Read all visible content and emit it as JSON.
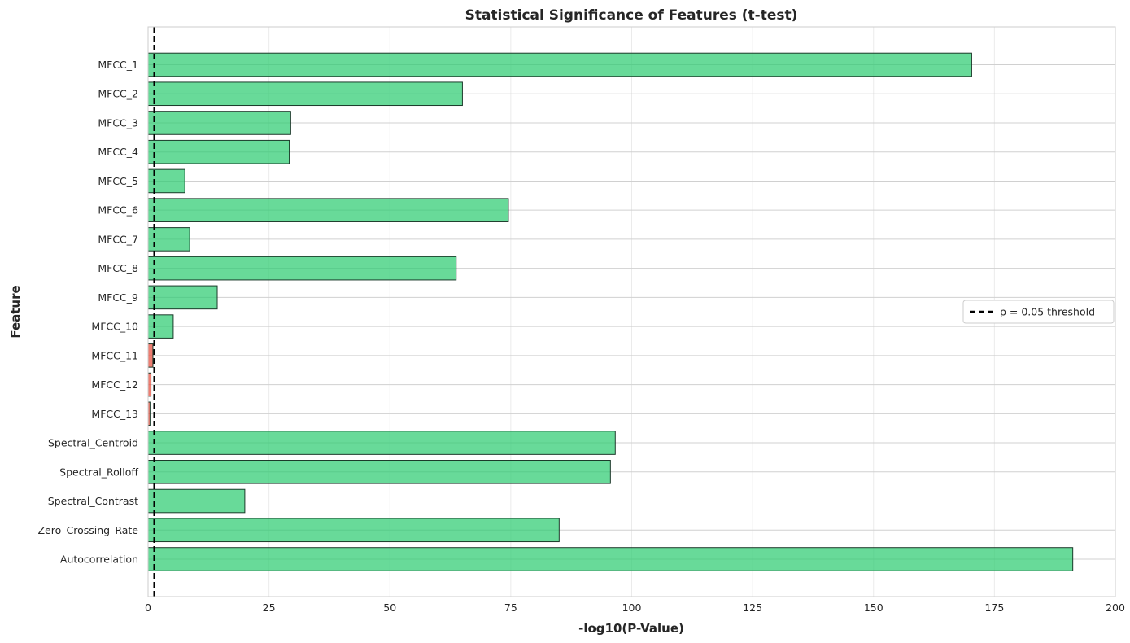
{
  "chart_data": {
    "type": "bar",
    "orientation": "horizontal",
    "title": "Statistical Significance of Features (t-test)",
    "xlabel": "-log10(P-Value)",
    "ylabel": "Feature",
    "xlim": [
      0,
      200
    ],
    "xticks": [
      0,
      25,
      50,
      75,
      100,
      125,
      150,
      175,
      200
    ],
    "grid": true,
    "legend_position": "center-right",
    "colors": {
      "significant": "#2ecc71",
      "not_significant": "#e74c3c",
      "bar_edge": "#1b3a2a",
      "threshold": "#000000"
    },
    "categories": [
      "MFCC_1",
      "MFCC_2",
      "MFCC_3",
      "MFCC_4",
      "MFCC_5",
      "MFCC_6",
      "MFCC_7",
      "MFCC_8",
      "MFCC_9",
      "MFCC_10",
      "MFCC_11",
      "MFCC_12",
      "MFCC_13",
      "Spectral_Centroid",
      "Spectral_Rolloff",
      "Spectral_Contrast",
      "Zero_Crossing_Rate",
      "Autocorrelation"
    ],
    "values": [
      170.3,
      65.0,
      29.5,
      29.2,
      7.6,
      74.5,
      8.6,
      63.7,
      14.3,
      5.2,
      1.0,
      0.6,
      0.4,
      96.6,
      95.6,
      20.0,
      85.0,
      191.2
    ],
    "threshold": {
      "value": 1.301,
      "label": "p = 0.05 threshold"
    }
  }
}
